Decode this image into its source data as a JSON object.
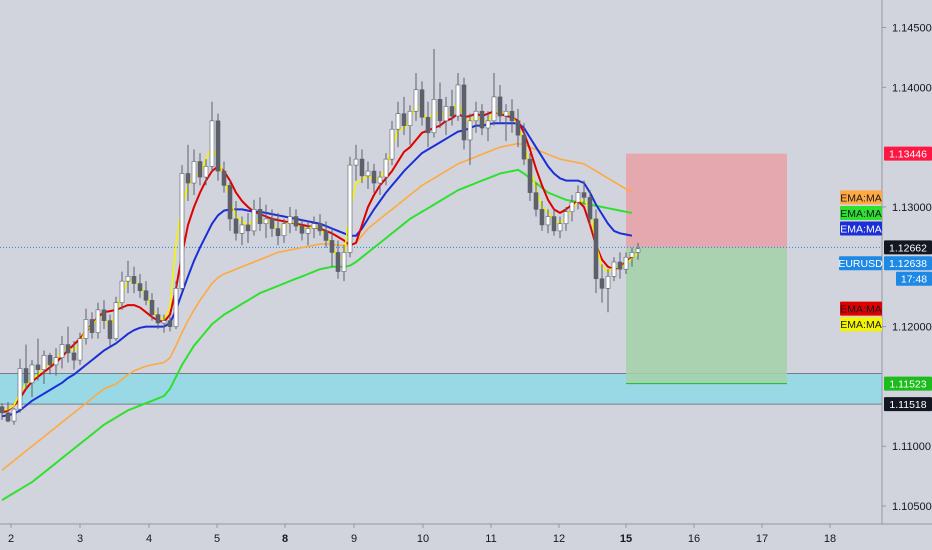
{
  "colors": {
    "background": "#d1d4dc",
    "candle_up": "#ffffff",
    "candle_down": "#5d606b",
    "ema_red": "#e00000",
    "ema_blue": "#1a2fd6",
    "ema_orange": "#ffa940",
    "ema_green": "#2fe02f",
    "ema_yellow": "#f5f500",
    "stop_zone": "#e8a0a6",
    "target_zone": "#a3d1a9",
    "support_zone": "#8fd9e6",
    "current_price": "#1e88e5"
  },
  "chart_data": {
    "type": "candlestick",
    "symbol": "EURUSD",
    "ylim": [
      1.1035,
      1.1473
    ],
    "y_ticks": [
      "1.14500",
      "1.14000",
      "1.13000",
      "1.12000",
      "1.11000",
      "1.10500"
    ],
    "x_ticks": [
      {
        "label": "2",
        "bold": false
      },
      {
        "label": "3",
        "bold": false
      },
      {
        "label": "4",
        "bold": false
      },
      {
        "label": "5",
        "bold": false
      },
      {
        "label": "8",
        "bold": true
      },
      {
        "label": "9",
        "bold": false
      },
      {
        "label": "10",
        "bold": false
      },
      {
        "label": "11",
        "bold": false
      },
      {
        "label": "12",
        "bold": false
      },
      {
        "label": "15",
        "bold": true
      },
      {
        "label": "16",
        "bold": false
      },
      {
        "label": "17",
        "bold": false
      },
      {
        "label": "18",
        "bold": false
      }
    ],
    "price_tags": [
      {
        "label": "1.13446",
        "value": 1.13446,
        "bg": "#ff1744",
        "fg": "#ffffff"
      },
      {
        "label": "EMA:MA",
        "value": 1.1308,
        "bg": "#ffa940",
        "fg": "#131722"
      },
      {
        "label": "EMA:MA",
        "value": 1.1295,
        "bg": "#2fe02f",
        "fg": "#131722"
      },
      {
        "label": "EMA:MA",
        "value": 1.1282,
        "bg": "#1a2fd6",
        "fg": "#ffffff"
      },
      {
        "label": "1.12662",
        "value": 1.12662,
        "bg": "#131722",
        "fg": "#ffffff"
      },
      {
        "label": "EURUSD",
        "value": 1.1253,
        "bg": "#1e88e5",
        "fg": "#ffffff"
      },
      {
        "label": "1.12638",
        "value": 1.1253,
        "bg": "#1e88e5",
        "fg": "#ffffff",
        "offset": "right"
      },
      {
        "label": "17:48",
        "value": 1.124,
        "bg": "#1e88e5",
        "fg": "#ffffff",
        "offset": "right"
      },
      {
        "label": "EMA:MA",
        "value": 1.1215,
        "bg": "#e00000",
        "fg": "#131722"
      },
      {
        "label": "EMA:MA",
        "value": 1.1202,
        "bg": "#f5f500",
        "fg": "#131722"
      },
      {
        "label": "1.11523",
        "value": 1.11523,
        "bg": "#1bbc1b",
        "fg": "#ffffff"
      },
      {
        "label": "1.11518",
        "value": 1.11352,
        "bg": "#131722",
        "fg": "#ffffff"
      }
    ],
    "current_price": 1.12662,
    "position": {
      "entry": 1.12662,
      "stop": 1.13446,
      "target": 1.11523
    },
    "support_zone": [
      1.11352,
      1.11608
    ],
    "candles": [
      [
        1.1133,
        1.1136,
        1.1122,
        1.1128
      ],
      [
        1.1128,
        1.1137,
        1.112,
        1.1121
      ],
      [
        1.1121,
        1.1132,
        1.1118,
        1.1131
      ],
      [
        1.1131,
        1.1173,
        1.1128,
        1.1165
      ],
      [
        1.1165,
        1.1185,
        1.1148,
        1.1153
      ],
      [
        1.1153,
        1.1172,
        1.1141,
        1.1168
      ],
      [
        1.1168,
        1.119,
        1.1155,
        1.1164
      ],
      [
        1.1164,
        1.118,
        1.1152,
        1.1176
      ],
      [
        1.1176,
        1.1178,
        1.116,
        1.1168
      ],
      [
        1.1168,
        1.1182,
        1.1159,
        1.1174
      ],
      [
        1.1174,
        1.1192,
        1.1165,
        1.1185
      ],
      [
        1.1185,
        1.12,
        1.117,
        1.1178
      ],
      [
        1.1178,
        1.1188,
        1.1164,
        1.1172
      ],
      [
        1.1172,
        1.1195,
        1.1168,
        1.119
      ],
      [
        1.119,
        1.1215,
        1.1185,
        1.1206
      ],
      [
        1.1206,
        1.1212,
        1.119,
        1.1195
      ],
      [
        1.1195,
        1.122,
        1.119,
        1.1214
      ],
      [
        1.1214,
        1.1222,
        1.1198,
        1.1205
      ],
      [
        1.1205,
        1.121,
        1.1184,
        1.119
      ],
      [
        1.119,
        1.1225,
        1.1188,
        1.122
      ],
      [
        1.122,
        1.1246,
        1.1214,
        1.1238
      ],
      [
        1.1238,
        1.1255,
        1.1228,
        1.1242
      ],
      [
        1.1242,
        1.125,
        1.1228,
        1.1236
      ],
      [
        1.1236,
        1.1244,
        1.1224,
        1.123
      ],
      [
        1.123,
        1.1238,
        1.1218,
        1.1222
      ],
      [
        1.1222,
        1.1228,
        1.1205,
        1.121
      ],
      [
        1.121,
        1.1216,
        1.1198,
        1.1203
      ],
      [
        1.1203,
        1.121,
        1.1195,
        1.1205
      ],
      [
        1.1205,
        1.1208,
        1.1196,
        1.12
      ],
      [
        1.12,
        1.1238,
        1.1198,
        1.1232
      ],
      [
        1.1232,
        1.1335,
        1.123,
        1.1328
      ],
      [
        1.1328,
        1.1352,
        1.1305,
        1.132
      ],
      [
        1.132,
        1.1348,
        1.131,
        1.1338
      ],
      [
        1.1338,
        1.1345,
        1.1318,
        1.1325
      ],
      [
        1.1325,
        1.134,
        1.1318,
        1.1334
      ],
      [
        1.1334,
        1.1388,
        1.133,
        1.1372
      ],
      [
        1.1372,
        1.1378,
        1.1322,
        1.133
      ],
      [
        1.133,
        1.1338,
        1.1312,
        1.1318
      ],
      [
        1.1318,
        1.1322,
        1.128,
        1.129
      ],
      [
        1.129,
        1.1305,
        1.1272,
        1.1278
      ],
      [
        1.1278,
        1.1292,
        1.1268,
        1.1285
      ],
      [
        1.1285,
        1.1295,
        1.127,
        1.128
      ],
      [
        1.128,
        1.1306,
        1.1276,
        1.1298
      ],
      [
        1.1298,
        1.1308,
        1.128,
        1.1286
      ],
      [
        1.1286,
        1.1302,
        1.1274,
        1.129
      ],
      [
        1.129,
        1.1298,
        1.1275,
        1.1282
      ],
      [
        1.1282,
        1.1295,
        1.1268,
        1.1276
      ],
      [
        1.1276,
        1.129,
        1.127,
        1.1286
      ],
      [
        1.1286,
        1.13,
        1.1278,
        1.1292
      ],
      [
        1.1292,
        1.1298,
        1.128,
        1.1284
      ],
      [
        1.1284,
        1.129,
        1.1272,
        1.1278
      ],
      [
        1.1278,
        1.1288,
        1.1268,
        1.1282
      ],
      [
        1.1282,
        1.1292,
        1.1274,
        1.1286
      ],
      [
        1.1286,
        1.1294,
        1.1276,
        1.128
      ],
      [
        1.128,
        1.1288,
        1.1266,
        1.1272
      ],
      [
        1.1272,
        1.1282,
        1.125,
        1.1262
      ],
      [
        1.1262,
        1.1272,
        1.124,
        1.1246
      ],
      [
        1.1246,
        1.1268,
        1.1238,
        1.1262
      ],
      [
        1.1262,
        1.1342,
        1.1258,
        1.1335
      ],
      [
        1.1335,
        1.1352,
        1.1322,
        1.134
      ],
      [
        1.134,
        1.1348,
        1.132,
        1.1326
      ],
      [
        1.1326,
        1.1338,
        1.1315,
        1.133
      ],
      [
        1.133,
        1.1336,
        1.1312,
        1.132
      ],
      [
        1.132,
        1.133,
        1.131,
        1.1325
      ],
      [
        1.1325,
        1.1345,
        1.1318,
        1.134
      ],
      [
        1.134,
        1.1372,
        1.1335,
        1.1365
      ],
      [
        1.1365,
        1.1388,
        1.135,
        1.1378
      ],
      [
        1.1378,
        1.1392,
        1.136,
        1.1368
      ],
      [
        1.1368,
        1.1385,
        1.1352,
        1.138
      ],
      [
        1.138,
        1.1412,
        1.1372,
        1.1398
      ],
      [
        1.1398,
        1.1405,
        1.1368,
        1.1375
      ],
      [
        1.1375,
        1.1388,
        1.135,
        1.1362
      ],
      [
        1.1362,
        1.1432,
        1.1358,
        1.139
      ],
      [
        1.139,
        1.1404,
        1.1366,
        1.1372
      ],
      [
        1.1372,
        1.1392,
        1.136,
        1.1384
      ],
      [
        1.1384,
        1.1398,
        1.1368,
        1.1376
      ],
      [
        1.1376,
        1.1412,
        1.1372,
        1.1402
      ],
      [
        1.1402,
        1.1408,
        1.1348,
        1.1356
      ],
      [
        1.1356,
        1.1378,
        1.1335,
        1.1372
      ],
      [
        1.1372,
        1.1388,
        1.1362,
        1.138
      ],
      [
        1.138,
        1.1386,
        1.136,
        1.1366
      ],
      [
        1.1366,
        1.138,
        1.1355,
        1.1372
      ],
      [
        1.1372,
        1.1412,
        1.1368,
        1.1392
      ],
      [
        1.1392,
        1.1402,
        1.137,
        1.1376
      ],
      [
        1.1376,
        1.1386,
        1.1355,
        1.138
      ],
      [
        1.138,
        1.139,
        1.1362,
        1.1372
      ],
      [
        1.1372,
        1.1382,
        1.135,
        1.136
      ],
      [
        1.136,
        1.137,
        1.1335,
        1.134
      ],
      [
        1.134,
        1.1345,
        1.1305,
        1.1312
      ],
      [
        1.1312,
        1.132,
        1.1292,
        1.1298
      ],
      [
        1.1298,
        1.1305,
        1.128,
        1.1285
      ],
      [
        1.1285,
        1.1298,
        1.1278,
        1.1292
      ],
      [
        1.1292,
        1.1298,
        1.1276,
        1.128
      ],
      [
        1.128,
        1.1292,
        1.1274,
        1.1286
      ],
      [
        1.1286,
        1.13,
        1.128,
        1.1296
      ],
      [
        1.1296,
        1.131,
        1.1288,
        1.1304
      ],
      [
        1.1304,
        1.1318,
        1.1298,
        1.1312
      ],
      [
        1.1312,
        1.1322,
        1.1302,
        1.1308
      ],
      [
        1.1308,
        1.1314,
        1.1285,
        1.129
      ],
      [
        1.129,
        1.1298,
        1.1228,
        1.124
      ],
      [
        1.124,
        1.1252,
        1.122,
        1.1232
      ],
      [
        1.1232,
        1.1248,
        1.1212,
        1.1242
      ],
      [
        1.1242,
        1.1258,
        1.1238,
        1.1254
      ],
      [
        1.1254,
        1.1262,
        1.124,
        1.1248
      ],
      [
        1.1248,
        1.1262,
        1.1244,
        1.1258
      ],
      [
        1.1258,
        1.1266,
        1.125,
        1.1262
      ],
      [
        1.1262,
        1.127,
        1.1256,
        1.1265
      ]
    ],
    "ema_red": [
      1.1128,
      1.113,
      1.1134,
      1.114,
      1.1148,
      1.1154,
      1.1158,
      1.1162,
      1.1166,
      1.117,
      1.1175,
      1.118,
      1.1185,
      1.119,
      1.1196,
      1.1202,
      1.1208,
      1.1212,
      1.1213,
      1.1214,
      1.1216,
      1.1218,
      1.1218,
      1.1216,
      1.1212,
      1.1208,
      1.1205,
      1.1204,
      1.121,
      1.1232,
      1.126,
      1.1285,
      1.13,
      1.1312,
      1.1322,
      1.133,
      1.1334,
      1.133,
      1.1322,
      1.1312,
      1.1305,
      1.13,
      1.1296,
      1.1294,
      1.1292,
      1.129,
      1.1289,
      1.1288,
      1.1287,
      1.1286,
      1.1285,
      1.1284,
      1.1283,
      1.1282,
      1.128,
      1.1278,
      1.1275,
      1.1272,
      1.1268,
      1.127,
      1.1285,
      1.13,
      1.131,
      1.1318,
      1.1324,
      1.133,
      1.1338,
      1.1346,
      1.135,
      1.1356,
      1.1362,
      1.1364,
      1.1366,
      1.1368,
      1.1372,
      1.1374,
      1.1378,
      1.1375,
      1.1376,
      1.1378,
      1.1376,
      1.1378,
      1.138,
      1.1378,
      1.1376,
      1.1375,
      1.1372,
      1.1362,
      1.1348,
      1.1332,
      1.1318,
      1.1306,
      1.1298,
      1.1295,
      1.1298,
      1.1302,
      1.1305,
      1.13,
      1.1285,
      1.1268,
      1.1256,
      1.125,
      1.1248,
      1.125,
      1.1254,
      1.1258
    ],
    "ema_blue": [
      1.1125,
      1.1126,
      1.1127,
      1.113,
      1.1134,
      1.1138,
      1.1141,
      1.1144,
      1.1147,
      1.115,
      1.1153,
      1.1157,
      1.116,
      1.1164,
      1.1168,
      1.1172,
      1.1176,
      1.118,
      1.1183,
      1.1186,
      1.119,
      1.1194,
      1.1197,
      1.1199,
      1.12,
      1.12,
      1.12,
      1.12,
      1.1203,
      1.1214,
      1.1228,
      1.1242,
      1.1255,
      1.1266,
      1.1276,
      1.1286,
      1.1293,
      1.1297,
      1.1298,
      1.1298,
      1.1298,
      1.1297,
      1.1296,
      1.1296,
      1.1295,
      1.1294,
      1.1293,
      1.1292,
      1.1291,
      1.129,
      1.1289,
      1.1288,
      1.1287,
      1.1286,
      1.1284,
      1.1282,
      1.128,
      1.1278,
      1.1276,
      1.1276,
      1.1282,
      1.129,
      1.1298,
      1.1305,
      1.1312,
      1.1318,
      1.1324,
      1.133,
      1.1335,
      1.134,
      1.1345,
      1.1348,
      1.1351,
      1.1354,
      1.1357,
      1.136,
      1.1363,
      1.1364,
      1.1366,
      1.1368,
      1.1368,
      1.1369,
      1.137,
      1.137,
      1.137,
      1.137,
      1.137,
      1.1366,
      1.1358,
      1.135,
      1.1342,
      1.1334,
      1.1328,
      1.1324,
      1.1322,
      1.1322,
      1.1322,
      1.132,
      1.1312,
      1.1302,
      1.1294,
      1.1286,
      1.128,
      1.1278,
      1.1277,
      1.1276
    ],
    "ema_orange": [
      1.108,
      1.1084,
      1.1088,
      1.1092,
      1.1096,
      1.11,
      1.1104,
      1.1108,
      1.1112,
      1.1116,
      1.112,
      1.1124,
      1.1128,
      1.1132,
      1.1136,
      1.114,
      1.1144,
      1.1148,
      1.115,
      1.1152,
      1.1156,
      1.116,
      1.1163,
      1.1165,
      1.1167,
      1.1168,
      1.1169,
      1.117,
      1.1174,
      1.1184,
      1.1195,
      1.1205,
      1.1214,
      1.1222,
      1.1229,
      1.1236,
      1.1241,
      1.1244,
      1.1246,
      1.1248,
      1.125,
      1.1252,
      1.1254,
      1.1256,
      1.1258,
      1.126,
      1.1262,
      1.1263,
      1.1264,
      1.1265,
      1.1266,
      1.1267,
      1.1268,
      1.1269,
      1.1269,
      1.1269,
      1.1268,
      1.1268,
      1.1268,
      1.127,
      1.1276,
      1.1282,
      1.1286,
      1.129,
      1.1294,
      1.1298,
      1.1302,
      1.1306,
      1.131,
      1.1314,
      1.1318,
      1.1321,
      1.1324,
      1.1327,
      1.133,
      1.1333,
      1.1336,
      1.1338,
      1.134,
      1.1342,
      1.1344,
      1.1346,
      1.1348,
      1.135,
      1.1351,
      1.1352,
      1.1353,
      1.1352,
      1.135,
      1.1348,
      1.1346,
      1.1344,
      1.1342,
      1.134,
      1.1339,
      1.1338,
      1.1337,
      1.1336,
      1.1333,
      1.133,
      1.1327,
      1.1324,
      1.1321,
      1.1318,
      1.1315,
      1.1313
    ],
    "ema_green": [
      1.1055,
      1.1058,
      1.1061,
      1.1064,
      1.1067,
      1.107,
      1.1074,
      1.1078,
      1.1082,
      1.1086,
      1.109,
      1.1094,
      1.1098,
      1.1102,
      1.1106,
      1.111,
      1.1114,
      1.1118,
      1.1121,
      1.1124,
      1.1127,
      1.113,
      1.1132,
      1.1134,
      1.1136,
      1.1138,
      1.114,
      1.1142,
      1.1148,
      1.1158,
      1.1168,
      1.1176,
      1.1184,
      1.119,
      1.1196,
      1.1202,
      1.1206,
      1.121,
      1.1213,
      1.1216,
      1.1219,
      1.1222,
      1.1225,
      1.1228,
      1.123,
      1.1232,
      1.1234,
      1.1236,
      1.1238,
      1.124,
      1.1242,
      1.1244,
      1.1246,
      1.1248,
      1.1249,
      1.125,
      1.125,
      1.125,
      1.1251,
      1.1254,
      1.1258,
      1.1262,
      1.1266,
      1.127,
      1.1274,
      1.1278,
      1.1282,
      1.1286,
      1.129,
      1.1293,
      1.1296,
      1.1299,
      1.1302,
      1.1305,
      1.1308,
      1.1311,
      1.1314,
      1.1316,
      1.1318,
      1.132,
      1.1322,
      1.1324,
      1.1326,
      1.1328,
      1.1329,
      1.133,
      1.1331,
      1.1328,
      1.1324,
      1.132,
      1.1316,
      1.1312,
      1.131,
      1.1308,
      1.1306,
      1.1305,
      1.1304,
      1.1303,
      1.1302,
      1.1301,
      1.13,
      1.1299,
      1.1298,
      1.1297,
      1.1296,
      1.1295
    ],
    "ema_yellow": [
      1.113,
      1.1131,
      1.1134,
      1.1145,
      1.1152,
      1.1156,
      1.116,
      1.1166,
      1.1168,
      1.1172,
      1.118,
      1.1182,
      1.118,
      1.1186,
      1.1198,
      1.12,
      1.1208,
      1.1208,
      1.12,
      1.121,
      1.1228,
      1.1238,
      1.1238,
      1.1234,
      1.1226,
      1.1215,
      1.1208,
      1.1206,
      1.1216,
      1.127,
      1.13,
      1.1318,
      1.1326,
      1.1328,
      1.134,
      1.135,
      1.134,
      1.1325,
      1.1306,
      1.1292,
      1.1288,
      1.1284,
      1.129,
      1.1288,
      1.1289,
      1.1286,
      1.1281,
      1.1284,
      1.1288,
      1.1286,
      1.1282,
      1.1282,
      1.1284,
      1.1282,
      1.1276,
      1.1268,
      1.1256,
      1.1259,
      1.1298,
      1.132,
      1.1323,
      1.1326,
      1.1323,
      1.1324,
      1.1332,
      1.135,
      1.1364,
      1.1366,
      1.1373,
      1.1386,
      1.138,
      1.1371,
      1.138,
      1.1376,
      1.138,
      1.1378,
      1.139,
      1.1373,
      1.1372,
      1.1376,
      1.1371,
      1.1371,
      1.1381,
      1.1378,
      1.1379,
      1.1376,
      1.1368,
      1.1354,
      1.1333,
      1.1315,
      1.13,
      1.1296,
      1.1288,
      1.1287,
      1.1291,
      1.1298,
      1.1305,
      1.1306,
      1.1298,
      1.1269,
      1.125,
      1.1246,
      1.125,
      1.1249,
      1.1253,
      1.1257,
      1.1261
    ]
  }
}
